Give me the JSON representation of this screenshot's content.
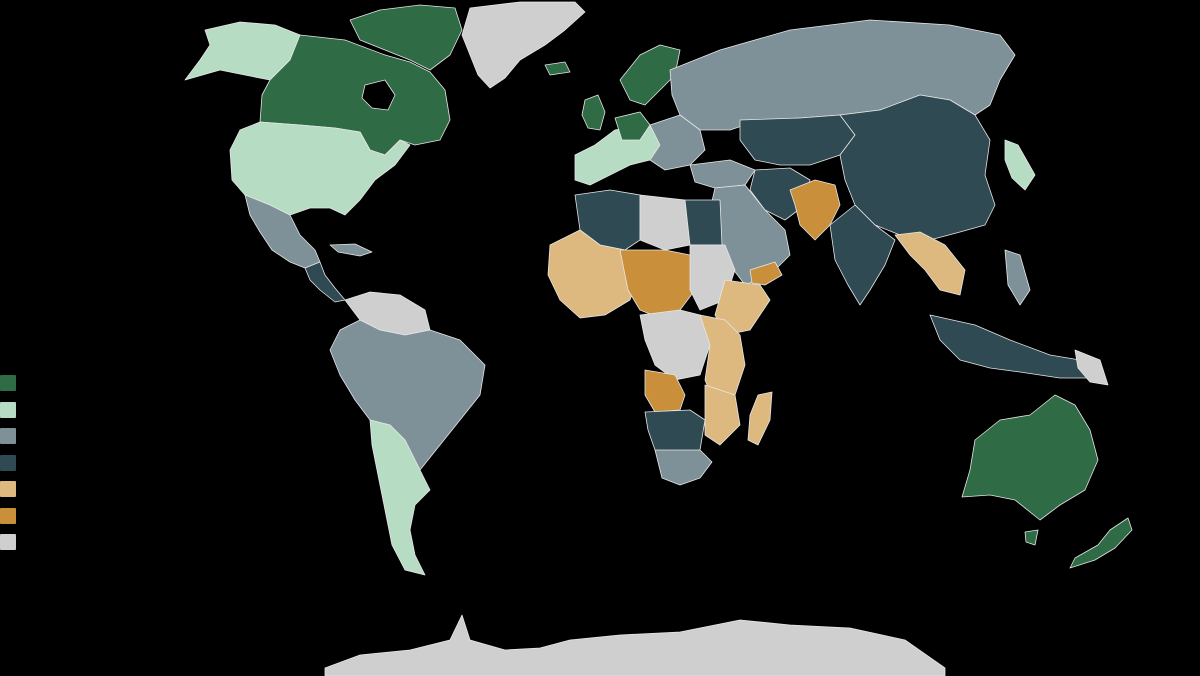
{
  "map": {
    "background": "#000000",
    "border_color": "#e6e6e6",
    "categories": [
      {
        "key": "cat1",
        "color": "#2f6b45"
      },
      {
        "key": "cat2",
        "color": "#b7dcc4"
      },
      {
        "key": "cat3",
        "color": "#7f9198"
      },
      {
        "key": "cat4",
        "color": "#2f4a52"
      },
      {
        "key": "cat5",
        "color": "#deb97f"
      },
      {
        "key": "cat6",
        "color": "#c98f3a"
      },
      {
        "key": "cat7",
        "color": "#cfcfcf"
      }
    ]
  }
}
